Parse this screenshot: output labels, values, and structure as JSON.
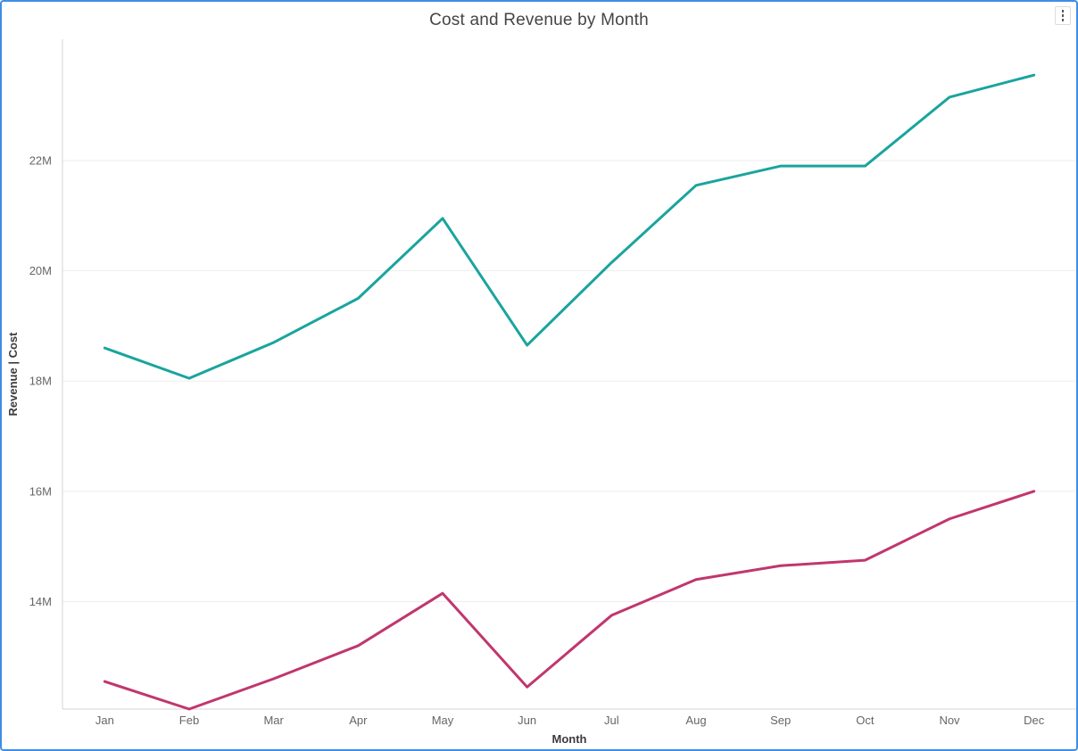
{
  "card": {
    "title": "Cost and Revenue by Month",
    "menu_icon": "kebab-vertical"
  },
  "chart_data": {
    "type": "line",
    "title": "Cost and Revenue by Month",
    "xlabel": "Month",
    "ylabel": "Revenue | Cost",
    "value_unit": "M",
    "categories": [
      "Jan",
      "Feb",
      "Mar",
      "Apr",
      "May",
      "Jun",
      "Jul",
      "Aug",
      "Sep",
      "Oct",
      "Nov",
      "Dec"
    ],
    "series": [
      {
        "name": "Revenue",
        "color": "#1AA49E",
        "values": [
          18.6,
          18.05,
          18.7,
          19.5,
          20.95,
          18.65,
          20.15,
          21.55,
          21.9,
          21.9,
          23.15,
          23.55
        ]
      },
      {
        "name": "Cost",
        "color": "#C1366E",
        "values": [
          12.55,
          12.05,
          12.6,
          13.2,
          14.15,
          12.45,
          13.75,
          14.4,
          14.65,
          14.75,
          15.5,
          16.0
        ]
      }
    ],
    "ylim": [
      12.05,
      24.2
    ],
    "yticks": [
      {
        "value": 14,
        "label": "14M"
      },
      {
        "value": 16,
        "label": "16M"
      },
      {
        "value": 18,
        "label": "18M"
      },
      {
        "value": 20,
        "label": "20M"
      },
      {
        "value": 22,
        "label": "22M"
      }
    ],
    "grid": "horizontal",
    "legend": "none"
  },
  "colors": {
    "frame_border": "#3E8EE4",
    "gridline": "#EDEDED",
    "axis_line": "#D6D6D6",
    "tick_text": "#666666",
    "axis_title_text": "#3C3C3C",
    "title_text": "#454545"
  }
}
